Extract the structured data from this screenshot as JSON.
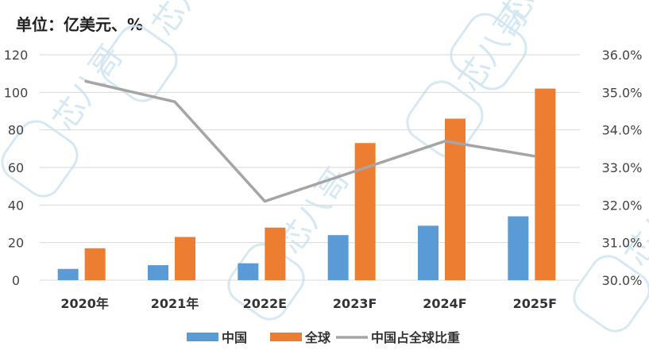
{
  "chart_data": {
    "type": "bar+line",
    "unit_label": "单位：亿美元、%",
    "categories": [
      "2020年",
      "2021年",
      "2022E",
      "2023F",
      "2024F",
      "2025F"
    ],
    "series": [
      {
        "name": "中国",
        "type": "bar",
        "axis": "left",
        "color": "#5b9bd5",
        "values": [
          6,
          8,
          9,
          24,
          29,
          34
        ]
      },
      {
        "name": "全球",
        "type": "bar",
        "axis": "left",
        "color": "#ed7d31",
        "values": [
          17,
          23,
          28,
          73,
          86,
          102
        ]
      },
      {
        "name": "中国占全球比重",
        "type": "line",
        "axis": "right",
        "color": "#a5a5a5",
        "values": [
          35.3,
          34.75,
          32.1,
          32.9,
          33.7,
          33.3
        ]
      }
    ],
    "y_left": {
      "min": 0,
      "max": 120,
      "ticks": [
        "0",
        "20",
        "40",
        "60",
        "80",
        "100",
        "120"
      ]
    },
    "y_right": {
      "min": 30,
      "max": 36,
      "ticks": [
        "30.0%",
        "31.0%",
        "32.0%",
        "33.0%",
        "34.0%",
        "35.0%",
        "36.0%"
      ]
    },
    "grid": true,
    "legend_position": "bottom"
  },
  "watermark": {
    "text": "芯八哥",
    "color": "#cfe6f2"
  }
}
